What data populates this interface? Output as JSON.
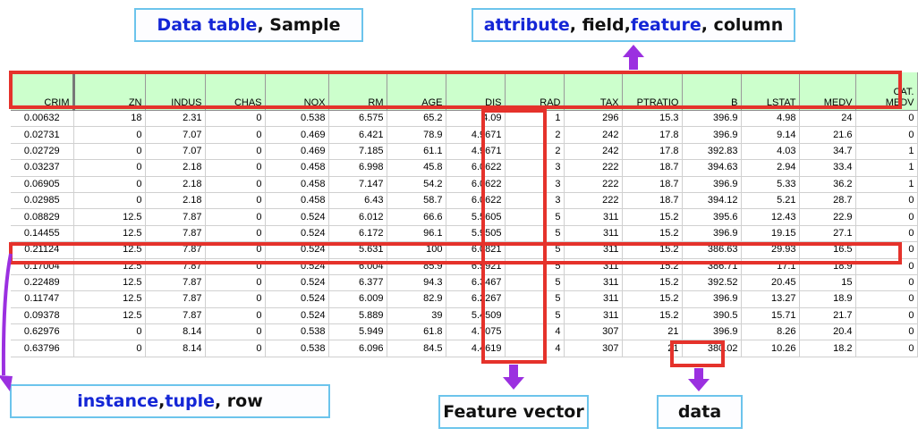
{
  "labels": {
    "data_table": {
      "blue": "Data table",
      "rest": ", Sample"
    },
    "attribute": {
      "blue1": "attribute",
      "sep1": ", field, ",
      "blue2": "feature",
      "sep2": ", column"
    },
    "instance": {
      "blue1": "instance",
      "sep1": ", ",
      "blue2": "tuple",
      "sep2": ", row"
    },
    "feature_vector": "Feature vector",
    "data": "data"
  },
  "table": {
    "headers": [
      "CRIM",
      "ZN",
      "INDUS",
      "CHAS",
      "NOX",
      "RM",
      "AGE",
      "DIS",
      "RAD",
      "TAX",
      "PTRATIO",
      "B",
      "LSTAT",
      "MEDV",
      [
        "CAT.",
        "MEDV"
      ]
    ],
    "rows": [
      [
        "0.00632",
        "18",
        "2.31",
        "0",
        "0.538",
        "6.575",
        "65.2",
        "4.09",
        "1",
        "296",
        "15.3",
        "396.9",
        "4.98",
        "24",
        "0"
      ],
      [
        "0.02731",
        "0",
        "7.07",
        "0",
        "0.469",
        "6.421",
        "78.9",
        "4.9671",
        "2",
        "242",
        "17.8",
        "396.9",
        "9.14",
        "21.6",
        "0"
      ],
      [
        "0.02729",
        "0",
        "7.07",
        "0",
        "0.469",
        "7.185",
        "61.1",
        "4.9671",
        "2",
        "242",
        "17.8",
        "392.83",
        "4.03",
        "34.7",
        "1"
      ],
      [
        "0.03237",
        "0",
        "2.18",
        "0",
        "0.458",
        "6.998",
        "45.8",
        "6.0622",
        "3",
        "222",
        "18.7",
        "394.63",
        "2.94",
        "33.4",
        "1"
      ],
      [
        "0.06905",
        "0",
        "2.18",
        "0",
        "0.458",
        "7.147",
        "54.2",
        "6.0622",
        "3",
        "222",
        "18.7",
        "396.9",
        "5.33",
        "36.2",
        "1"
      ],
      [
        "0.02985",
        "0",
        "2.18",
        "0",
        "0.458",
        "6.43",
        "58.7",
        "6.0622",
        "3",
        "222",
        "18.7",
        "394.12",
        "5.21",
        "28.7",
        "0"
      ],
      [
        "0.08829",
        "12.5",
        "7.87",
        "0",
        "0.524",
        "6.012",
        "66.6",
        "5.5605",
        "5",
        "311",
        "15.2",
        "395.6",
        "12.43",
        "22.9",
        "0"
      ],
      [
        "0.14455",
        "12.5",
        "7.87",
        "0",
        "0.524",
        "6.172",
        "96.1",
        "5.9505",
        "5",
        "311",
        "15.2",
        "396.9",
        "19.15",
        "27.1",
        "0"
      ],
      [
        "0.21124",
        "12.5",
        "7.87",
        "0",
        "0.524",
        "5.631",
        "100",
        "6.0821",
        "5",
        "311",
        "15.2",
        "386.63",
        "29.93",
        "16.5",
        "0"
      ],
      [
        "0.17004",
        "12.5",
        "7.87",
        "0",
        "0.524",
        "6.004",
        "85.9",
        "6.5921",
        "5",
        "311",
        "15.2",
        "386.71",
        "17.1",
        "18.9",
        "0"
      ],
      [
        "0.22489",
        "12.5",
        "7.87",
        "0",
        "0.524",
        "6.377",
        "94.3",
        "6.3467",
        "5",
        "311",
        "15.2",
        "392.52",
        "20.45",
        "15",
        "0"
      ],
      [
        "0.11747",
        "12.5",
        "7.87",
        "0",
        "0.524",
        "6.009",
        "82.9",
        "6.2267",
        "5",
        "311",
        "15.2",
        "396.9",
        "13.27",
        "18.9",
        "0"
      ],
      [
        "0.09378",
        "12.5",
        "7.87",
        "0",
        "0.524",
        "5.889",
        "39",
        "5.4509",
        "5",
        "311",
        "15.2",
        "390.5",
        "15.71",
        "21.7",
        "0"
      ],
      [
        "0.62976",
        "0",
        "8.14",
        "0",
        "0.538",
        "5.949",
        "61.8",
        "4.7075",
        "4",
        "307",
        "21",
        "396.9",
        "8.26",
        "20.4",
        "0"
      ],
      [
        "0.63796",
        "0",
        "8.14",
        "0",
        "0.538",
        "6.096",
        "84.5",
        "4.4619",
        "4",
        "307",
        "21",
        "380.02",
        "10.26",
        "18.2",
        "0"
      ]
    ]
  },
  "colors": {
    "highlight": "#e5322b",
    "arrow": "#9b30e0",
    "header_bg": "#ccffcc",
    "callout_border": "#6cc4ec",
    "label_blue": "#1426d6"
  }
}
